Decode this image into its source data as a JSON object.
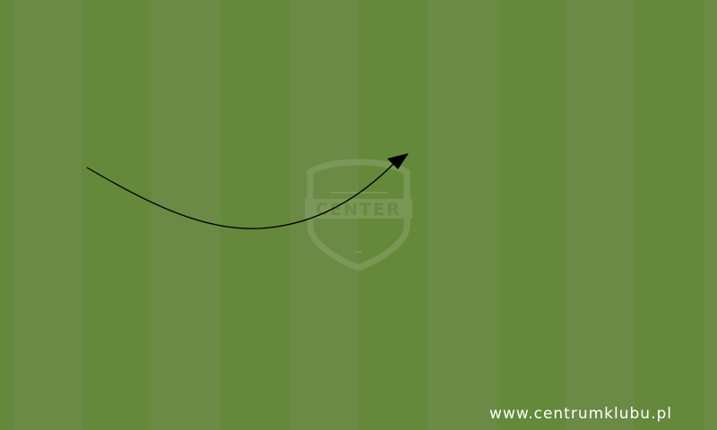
{
  "pitch": {
    "stripe_colors": [
      "#6a8a45",
      "#64893b"
    ],
    "stripe_count": 11
  },
  "arrow": {
    "color": "#000000"
  },
  "watermark": {
    "icon": "shield-icon",
    "text": "CENTER",
    "color": "#8aa36a"
  },
  "footer": {
    "url": "www.centrumklubu.pl",
    "color": "#ffffff"
  }
}
